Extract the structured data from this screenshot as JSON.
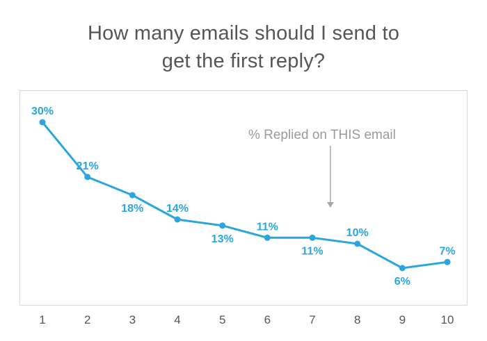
{
  "chart_data": {
    "type": "line",
    "title_lines": [
      "How many emails should I send to",
      "get the first reply?"
    ],
    "x": [
      1,
      2,
      3,
      4,
      5,
      6,
      7,
      8,
      9,
      10
    ],
    "series": [
      {
        "values": [
          30,
          21,
          18,
          14,
          13,
          11,
          11,
          10,
          6,
          7
        ],
        "labels": [
          "30%",
          "21%",
          "18%",
          "14%",
          "13%",
          "11%",
          "11%",
          "10%",
          "6%",
          "7%"
        ],
        "label_positions": [
          "above",
          "above",
          "below",
          "above",
          "below",
          "above",
          "below",
          "above",
          "below",
          "above"
        ]
      }
    ],
    "annotation": {
      "text": "% Replied on THIS email",
      "points_to_x": 7.4
    },
    "ylim": [
      0,
      35
    ],
    "grid": false,
    "colors": {
      "line": "#2aa6dc",
      "label": "#2aa6dc",
      "frame": "#d6d6d6",
      "arrow": "#a8a8a8"
    }
  }
}
